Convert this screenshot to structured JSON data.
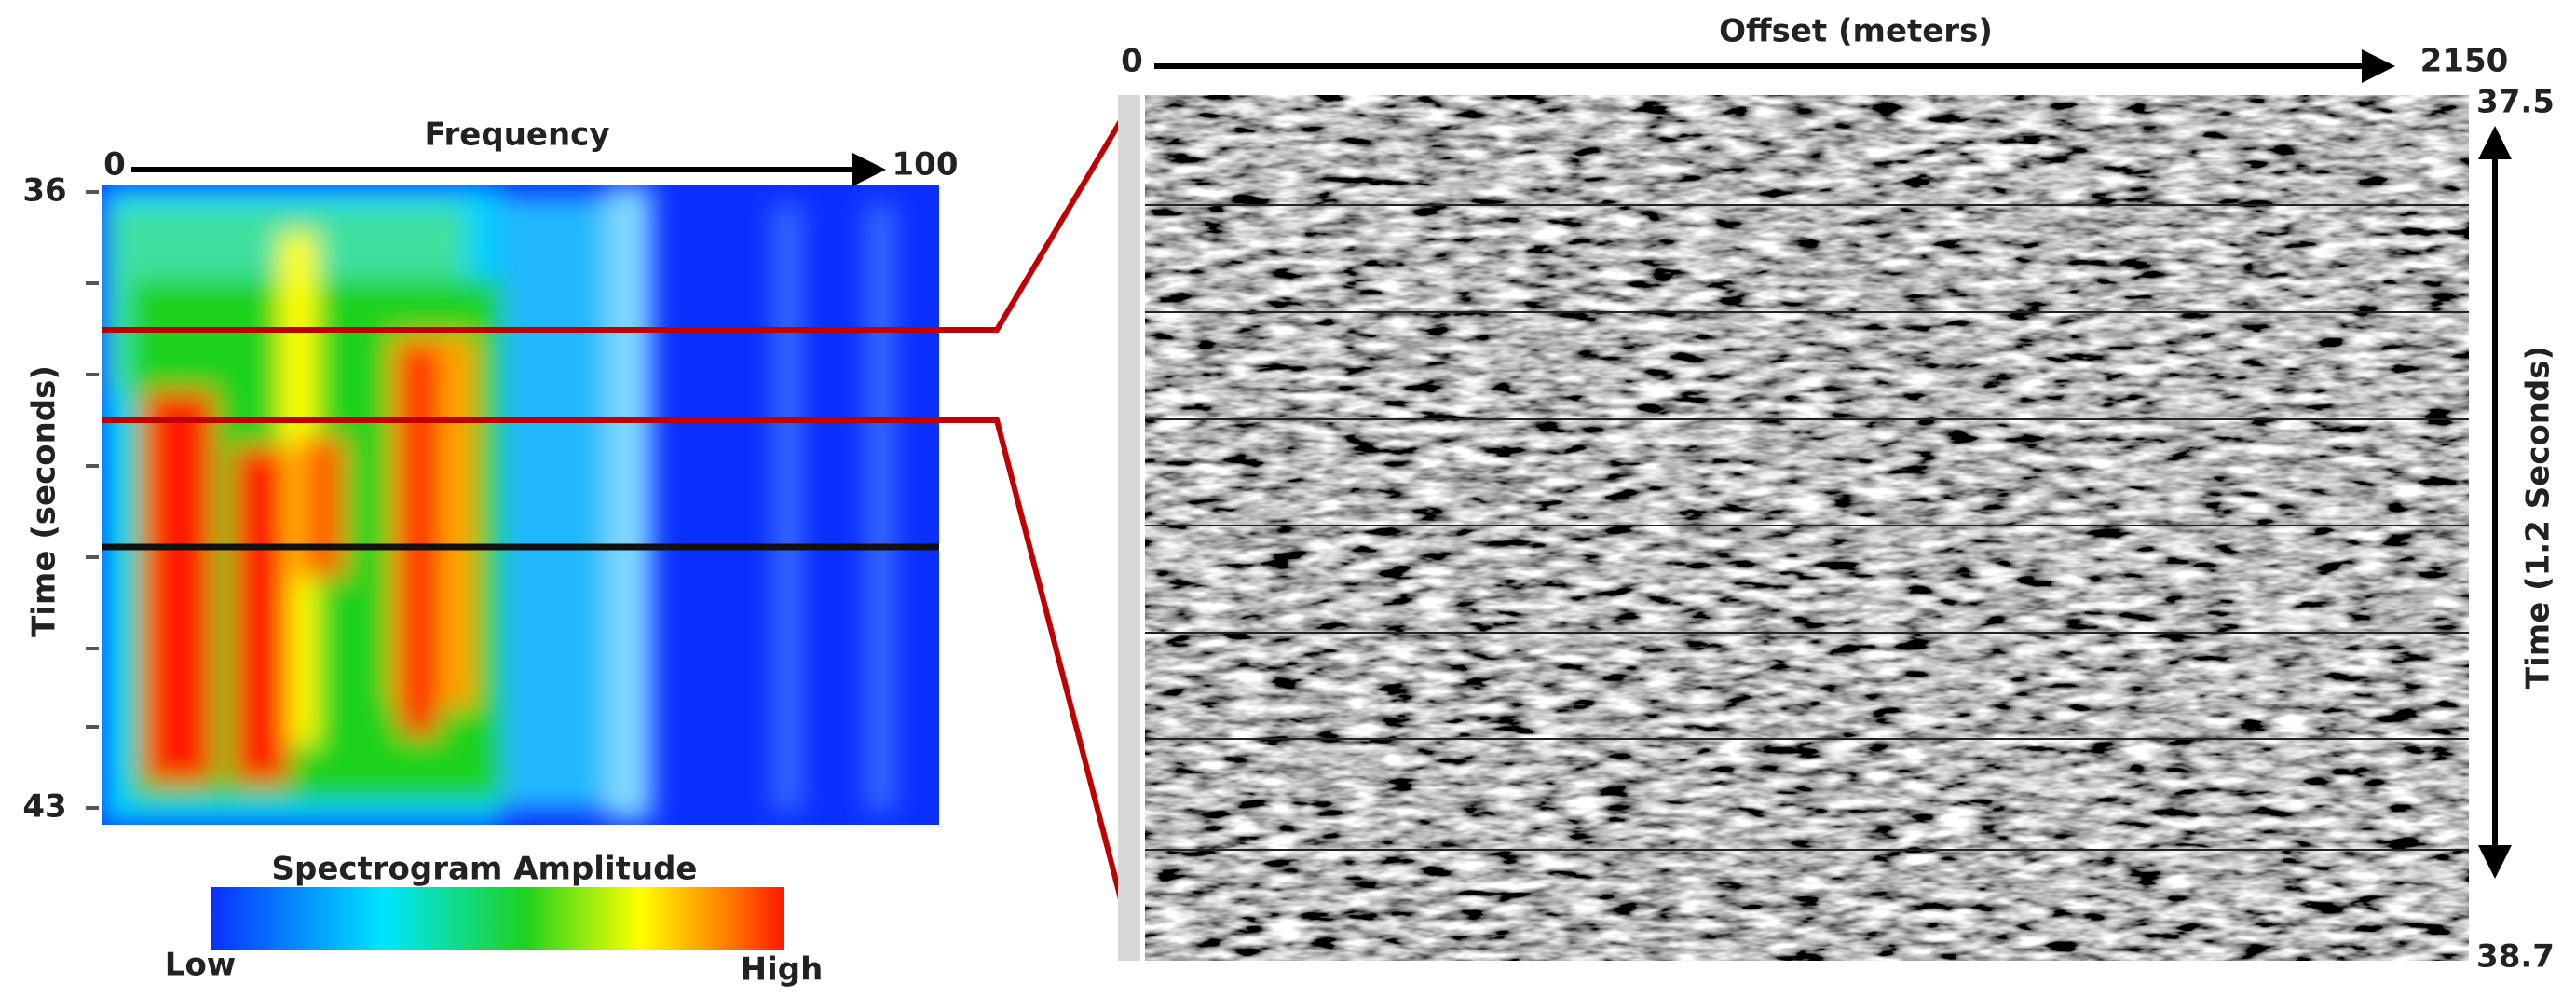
{
  "left_panel": {
    "x_axis": {
      "title": "Frequency",
      "start": 0,
      "end": 100
    },
    "y_axis": {
      "title": "Time (seconds)",
      "start": 36,
      "end": 43
    },
    "colorbar": {
      "title": "Spectrogram Amplitude",
      "low": "Low",
      "high": "High"
    }
  },
  "right_panel": {
    "x_axis": {
      "title": "Offset (meters)",
      "start": 0,
      "end": 2150
    },
    "y_axis": {
      "title": "Time (1.2 Seconds)",
      "start": 37.5,
      "end": 38.7
    }
  }
}
